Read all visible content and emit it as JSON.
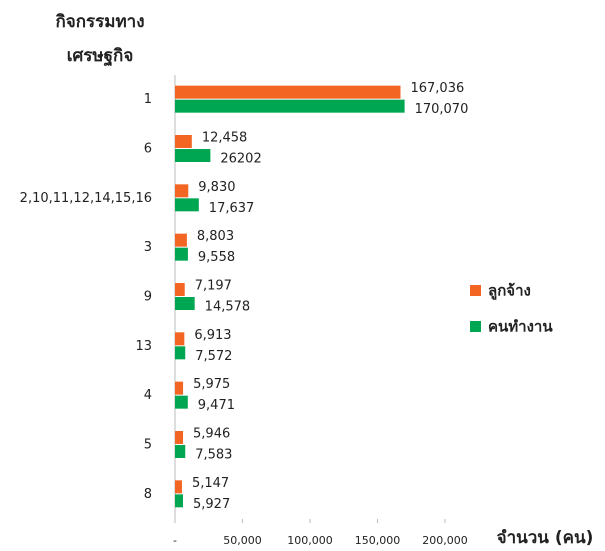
{
  "chart_data": {
    "type": "bar",
    "orientation": "horizontal",
    "ylabel": [
      "กิจกรรมทาง",
      "เศรษฐกิจ"
    ],
    "xlabel": "จำนวน (คน)",
    "categories": [
      "1",
      "6",
      "2,10,11,12,14,15,16",
      "3",
      "9",
      "13",
      "4",
      "5",
      "8"
    ],
    "series": [
      {
        "name": "ลูกจ้าง",
        "color": "#f26522",
        "values": [
          167036,
          12458,
          9830,
          8803,
          7197,
          6913,
          5975,
          5946,
          5147
        ],
        "value_labels": [
          "167,036",
          "12,458",
          "9,830",
          "8,803",
          "7,197",
          "6,913",
          "5,975",
          "5,946",
          "5,147"
        ]
      },
      {
        "name": "คนทำงาน",
        "color": "#00a651",
        "values": [
          170070,
          26202,
          17637,
          9558,
          14578,
          7572,
          9471,
          7583,
          5927
        ],
        "value_labels": [
          "170,070",
          "26202",
          "17,637",
          "9,558",
          "14,578",
          "7,572",
          "9,471",
          "7,583",
          "5,927"
        ]
      }
    ],
    "xlim": [
      0,
      200000
    ],
    "xticks": [
      {
        "value": 0,
        "label": "-"
      },
      {
        "value": 50000,
        "label": "50,000"
      },
      {
        "value": 100000,
        "label": "100,000"
      },
      {
        "value": 150000,
        "label": "150,000"
      },
      {
        "value": 200000,
        "label": "200,000"
      }
    ],
    "legend": "right",
    "grid": false
  }
}
